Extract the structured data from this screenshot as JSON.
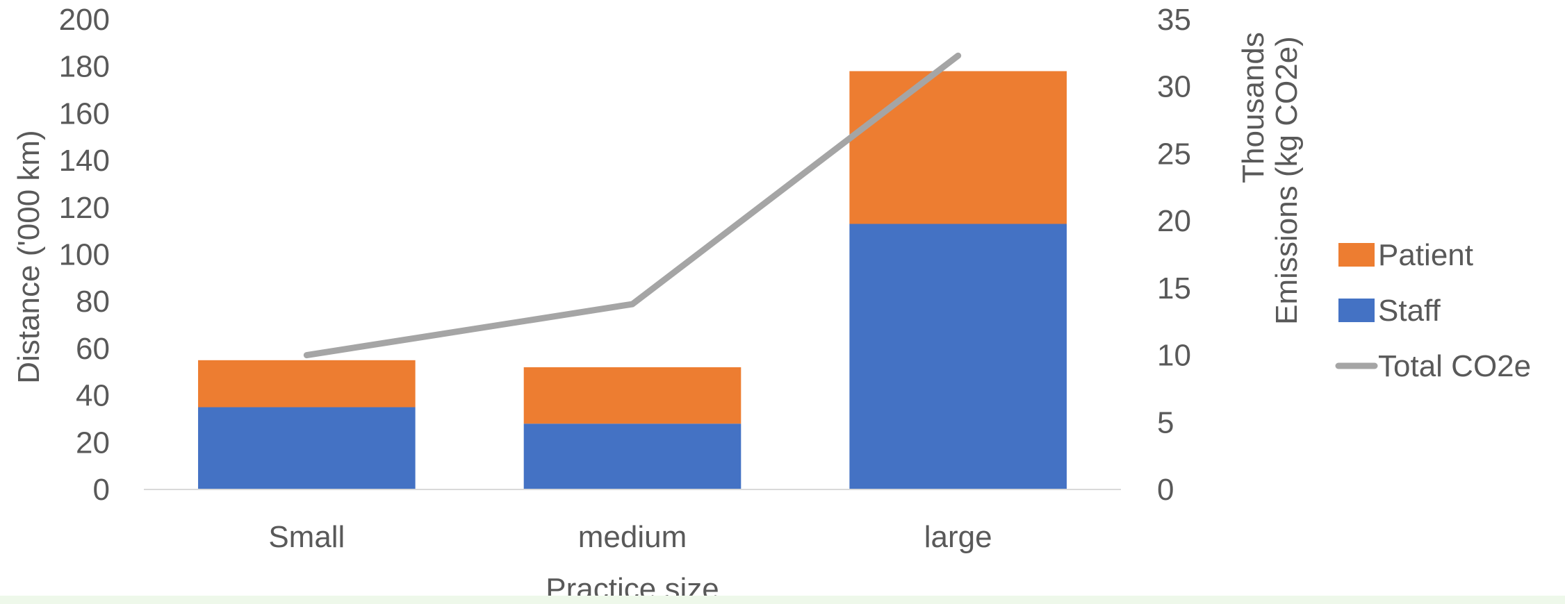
{
  "chart_data": {
    "type": "bar",
    "stacked": true,
    "categories": [
      "Small",
      "medium",
      "large"
    ],
    "series": [
      {
        "name": "Staff",
        "type": "bar",
        "axis": "left",
        "color": "#4472C4",
        "values": [
          35,
          28,
          113
        ]
      },
      {
        "name": "Patient",
        "type": "bar",
        "axis": "left",
        "color": "#ED7D31",
        "values": [
          20,
          24,
          65
        ]
      },
      {
        "name": "Total CO2e",
        "type": "line",
        "axis": "right",
        "color": "#A5A5A5",
        "values": [
          10,
          13.8,
          32.3
        ]
      }
    ],
    "xlabel": "Practice size",
    "ylabel": "Distance ('000 km)",
    "y2label_line1": "Thousands",
    "y2label_line2": "Emissions (kg CO2e)",
    "ylim": [
      0,
      200
    ],
    "y2lim": [
      0,
      35
    ],
    "yticks": [
      0,
      20,
      40,
      60,
      80,
      100,
      120,
      140,
      160,
      180,
      200
    ],
    "y2ticks": [
      0,
      5,
      10,
      15,
      20,
      25,
      30,
      35
    ],
    "legend_placement": "right",
    "legend_order": [
      "Patient",
      "Staff",
      "Total CO2e"
    ],
    "gridlines": false
  }
}
